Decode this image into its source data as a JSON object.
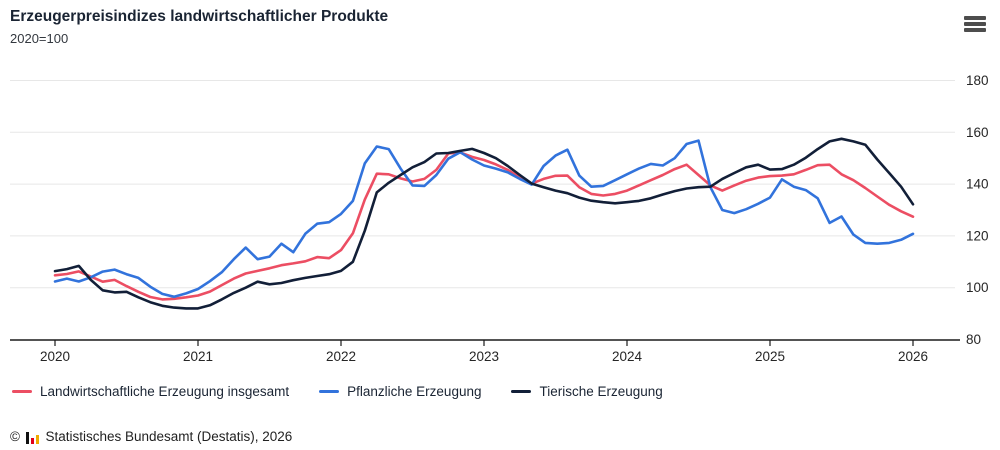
{
  "header": {
    "title": "Erzeugerpreisindizes landwirtschaftlicher Produkte",
    "subtitle": "2020=100"
  },
  "footer": {
    "copyright": "©",
    "text": "Statistisches Bundesamt (Destatis), 2026"
  },
  "chart_data": {
    "type": "line",
    "title": "Erzeugerpreisindizes landwirtschaftlicher Produkte",
    "subtitle": "2020=100",
    "interval": "monthly",
    "x_start": "2020-01",
    "x_end": "2026-01",
    "x_ticks": [
      "2020",
      "2021",
      "2022",
      "2023",
      "2024",
      "2025",
      "2026"
    ],
    "y_ticks": [
      80,
      100,
      120,
      140,
      160,
      180
    ],
    "ylim": [
      80,
      180
    ],
    "grid": "horizontal",
    "legend_position": "bottom",
    "axis_color": "#1a1a1a",
    "grid_color": "#e7e7e7",
    "series": [
      {
        "name": "Landwirtschaftliche Erzeugung insgesamt",
        "color": "#ec4e63",
        "values": [
          104.8,
          105.3,
          106.3,
          104.3,
          102.3,
          103.0,
          100.6,
          98.4,
          96.4,
          95.5,
          95.7,
          96.3,
          97.0,
          98.5,
          101.0,
          103.5,
          105.5,
          106.5,
          107.5,
          108.7,
          109.4,
          110.2,
          111.8,
          111.4,
          114.5,
          121.0,
          134.0,
          144.0,
          143.8,
          142.2,
          141.0,
          142.0,
          145.5,
          151.8,
          152.2,
          150.5,
          149.3,
          147.6,
          145.5,
          142.5,
          140.2,
          142.0,
          143.2,
          143.3,
          138.8,
          136.2,
          135.6,
          136.2,
          137.5,
          139.5,
          141.5,
          143.5,
          145.8,
          147.5,
          143.5,
          139.5,
          137.5,
          139.5,
          141.3,
          142.5,
          143.1,
          143.3,
          143.8,
          145.5,
          147.3,
          147.5,
          143.8,
          141.5,
          138.5,
          135.2,
          132.0,
          129.5,
          127.4
        ]
      },
      {
        "name": "Pflanzliche Erzeugung",
        "color": "#3273dc",
        "values": [
          102.4,
          103.5,
          102.4,
          104.0,
          106.2,
          107.0,
          105.2,
          103.8,
          100.4,
          97.6,
          96.5,
          97.8,
          99.5,
          102.5,
          106.0,
          111.0,
          115.5,
          111.0,
          112.0,
          117.0,
          113.7,
          120.8,
          124.7,
          125.3,
          128.5,
          133.5,
          148.0,
          154.5,
          153.5,
          146.0,
          139.5,
          139.3,
          143.5,
          149.8,
          152.3,
          149.5,
          147.2,
          146.0,
          144.5,
          142.0,
          139.8,
          147.0,
          151.0,
          153.3,
          143.3,
          139.0,
          139.3,
          141.5,
          143.8,
          146.0,
          147.8,
          147.2,
          150.0,
          155.5,
          156.8,
          138.8,
          130.0,
          128.8,
          130.3,
          132.4,
          134.8,
          141.8,
          139.0,
          137.7,
          134.5,
          125.0,
          127.5,
          120.5,
          117.3,
          117.0,
          117.3,
          118.5,
          120.8
        ]
      },
      {
        "name": "Tierische Erzeugung",
        "color": "#121f38",
        "values": [
          106.4,
          107.2,
          108.4,
          103.0,
          99.0,
          98.2,
          98.4,
          96.3,
          94.4,
          93.0,
          92.3,
          92.0,
          92.0,
          93.2,
          95.5,
          98.0,
          100.0,
          102.3,
          101.3,
          101.8,
          102.9,
          103.8,
          104.5,
          105.2,
          106.5,
          110.0,
          122.0,
          136.8,
          140.5,
          143.5,
          146.5,
          148.5,
          151.8,
          152.0,
          152.8,
          153.6,
          152.0,
          150.0,
          147.0,
          143.5,
          140.2,
          138.8,
          137.5,
          136.5,
          134.8,
          133.6,
          133.0,
          132.6,
          133.0,
          133.5,
          134.5,
          136.0,
          137.3,
          138.3,
          138.8,
          139.0,
          142.0,
          144.3,
          146.5,
          147.5,
          145.6,
          145.8,
          147.5,
          150.2,
          153.5,
          156.5,
          157.5,
          156.5,
          155.2,
          149.5,
          144.3,
          139.0,
          132.2
        ]
      }
    ]
  }
}
